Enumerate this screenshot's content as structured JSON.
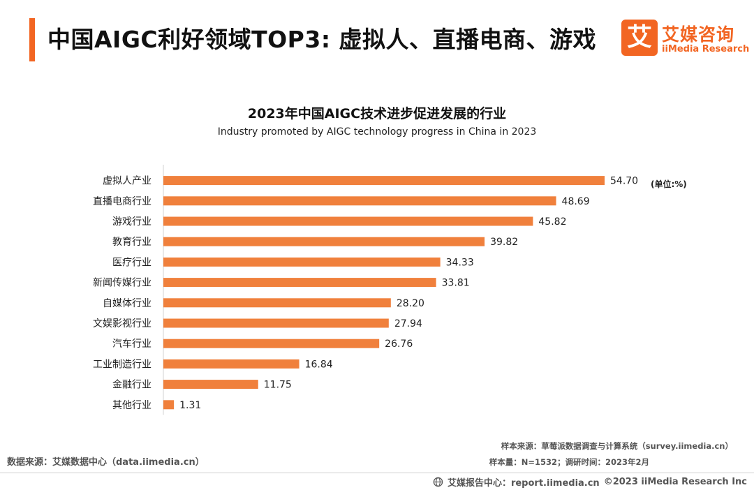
{
  "header": {
    "title": "中国AIGC利好领域TOP3: 虚拟人、直播电商、游戏",
    "accent_color": "#f26522"
  },
  "logo": {
    "mark": "艾",
    "name_cn": "艾媒咨询",
    "name_en": "iiMedia Research"
  },
  "chart_data": {
    "type": "bar",
    "orientation": "horizontal",
    "title": "2023年中国AIGC技术进步促进发展的行业",
    "subtitle": "Industry promoted by AIGC technology progress in China in 2023",
    "unit_label": "(单位:%)",
    "categories": [
      "虚拟人产业",
      "直播电商行业",
      "游戏行业",
      "教育行业",
      "医疗行业",
      "新闻传媒行业",
      "自媒体行业",
      "文娱影视行业",
      "汽车行业",
      "工业制造行业",
      "金融行业",
      "其他行业"
    ],
    "values": [
      54.7,
      48.69,
      45.82,
      39.82,
      34.33,
      33.81,
      28.2,
      27.94,
      26.76,
      16.84,
      11.75,
      1.31
    ],
    "value_labels": [
      "54.70",
      "48.69",
      "45.82",
      "39.82",
      "34.33",
      "33.81",
      "28.20",
      "27.94",
      "26.76",
      "16.84",
      "11.75",
      "1.31"
    ],
    "xlim": [
      0,
      60
    ],
    "bar_color": "#f0803c",
    "grid": false
  },
  "footer": {
    "source_left": "数据来源：艾媒数据中心（data.iimedia.cn）",
    "sample_source": "样本来源：草莓派数据调查与计算系统（survey.iimedia.cn）",
    "sample_size": "样本量：N=1532；调研时间：2023年2月",
    "report_center": "艾媒报告中心：report.iimedia.cn",
    "copyright": "©2023  iiMedia Research  Inc"
  }
}
